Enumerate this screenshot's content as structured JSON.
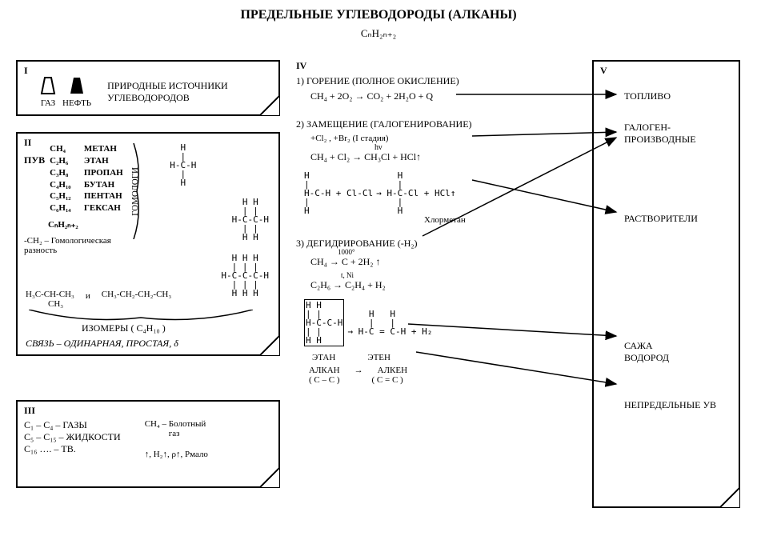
{
  "title": "ПРЕДЕЛЬНЫЕ УГЛЕВОДОРОДЫ (АЛКАНЫ)",
  "general_formula": "CₙH₂ₙ₊₂",
  "panel1": {
    "roman": "I",
    "icon_gas": "ГАЗ",
    "icon_oil": "НЕФТЬ",
    "label": "ПРИРОДНЫЕ ИСТОЧНИКИ УГЛЕВОДОРОДОВ"
  },
  "panel2": {
    "roman": "II",
    "puv": "ПУВ",
    "homologs_label": "ГОМОЛОГИ",
    "rows": [
      {
        "f": "CH₄",
        "n": "МЕТАН"
      },
      {
        "f": "C₂H₆",
        "n": "ЭТАН"
      },
      {
        "f": "C₃H₈",
        "n": "ПРОПАН"
      },
      {
        "f": "C₄H₁₀",
        "n": "БУТАН"
      },
      {
        "f": "C₅H₁₂",
        "n": "ПЕНТАН"
      },
      {
        "f": "C₆H₁₄",
        "n": "ГЕКСАН"
      }
    ],
    "general": "CₙH₂ₙ₊₂",
    "diff": "-CH₂ – Гомологическая разность",
    "iso1": "H₃C-CH-CH₃",
    "iso1b": "CH₃",
    "iso2": "CH₃-CH₂-CH₂-CH₃",
    "iso_label": "ИЗОМЕРЫ ( C₄H₁₀ )",
    "bond": "СВЯЗЬ – ОДИНАРНАЯ, ПРОСТАЯ, δ",
    "struct1": "    H\n    |\n  H-C-H\n    |\n    H",
    "struct2": "  H H\n  | |\nH-C-C-H\n  | |\n  H H",
    "struct3": "  H H H\n  | | |\nH-C-C-C-H\n  | | |\n  H H H"
  },
  "panel3": {
    "roman": "III",
    "r1": "C₁ – C₄ – ГАЗЫ",
    "r2": "C₅ – C₁₅ – ЖИДКОСТИ",
    "r3": "C₁₆ …. – ТВ.",
    "side1": "CH₄ – Болотный",
    "side2": "газ",
    "props": "↑, Н₂↑, ρ↑, Pмало"
  },
  "panel4": {
    "roman": "IV",
    "h1": "1) ГОРЕНИЕ (ПОЛНОЕ ОКИСЛЕНИЕ)",
    "eq1": "CH₄ + 2O₂ → CO₂ + 2H₂O + Q",
    "h2": "2) ЗАМЕЩЕНИЕ (ГАЛОГЕНИРОВАНИЕ)",
    "eq2a": "+Cl₂ , +Br₂   (I стадия)",
    "eq2b_cond": "hν",
    "eq2b": "CH₄ + Cl₂  →  CH₃Cl + HCl↑",
    "mech_left": "H\n|\nH-C-H + Cl-Cl\n|\nH",
    "mech_right": "    H\n    |\n→ H-C-Cl + HCl↑\n    |\n    H",
    "mech_label": "Хлорметан",
    "h3": "3) ДЕГИДРИРОВАНИЕ (-H₂)",
    "eq3a_cond": "1000°",
    "eq3a": "CH₄  →  C + 2H₂ ↑",
    "eq3b_cond": "t, Ni",
    "eq3b": "C₂H₆  →  C₂H₄ + H₂",
    "eq3c_left": "H H\n| |\nH-C-C-H\n| |\nH H",
    "eq3c_right": "    H   H\n    |   |\n→ H-C = C-H + H₂",
    "names1a": "ЭТАН",
    "names1b": "ЭТЕН",
    "names2a": "АЛКАН",
    "names2b": "АЛКЕН",
    "names3a": "( C – C )",
    "names3b": "( C = C )",
    "arrow": "→"
  },
  "panel5": {
    "roman": "V",
    "items": [
      "ТОПЛИВО",
      "ГАЛОГЕН-\nПРОИЗВОДНЫЕ",
      "РАСТВОРИТЕЛИ",
      "САЖА\nВОДОРОД",
      "НЕПРЕДЕЛЬНЫЕ УВ"
    ]
  },
  "style": {
    "bg": "#ffffff",
    "fg": "#000000",
    "border_w": 2,
    "arrow_color": "#000000"
  }
}
